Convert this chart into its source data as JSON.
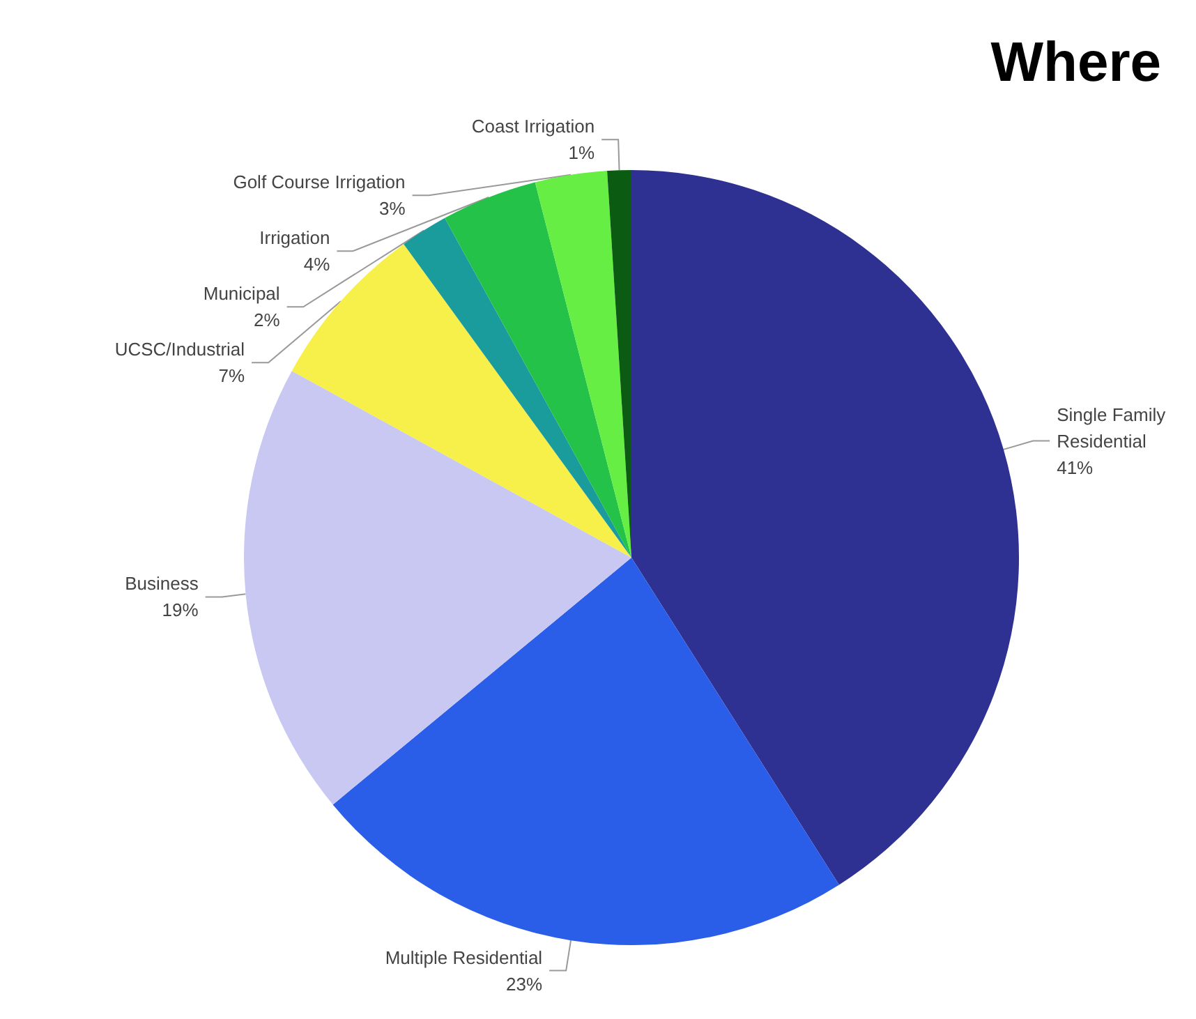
{
  "chart_data": {
    "type": "pie",
    "title": "Where",
    "categories": [
      "Single Family Residential",
      "Multiple Residential",
      "Business",
      "UCSC/Industrial",
      "Municipal",
      "Irrigation",
      "Golf Course Irrigation",
      "Coast Irrigation"
    ],
    "values": [
      41,
      23,
      19,
      7,
      2,
      4,
      3,
      1
    ],
    "value_labels": [
      "41%",
      "23%",
      "19%",
      "7%",
      "2%",
      "4%",
      "3%",
      "1%"
    ],
    "colors": [
      "#2e3192",
      "#2a5de8",
      "#c8c8f2",
      "#f7f04a",
      "#1a9c9c",
      "#25c24a",
      "#66ee44",
      "#0b5c12"
    ],
    "legend": false
  }
}
